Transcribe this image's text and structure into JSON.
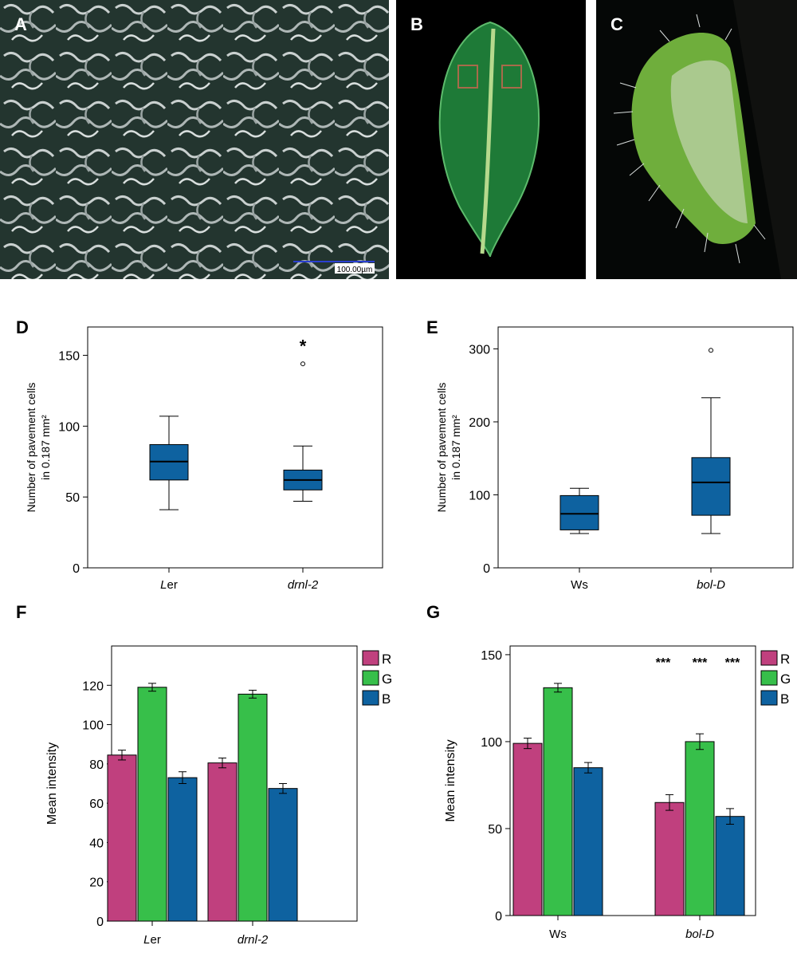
{
  "panels": {
    "A": {
      "letter": "A",
      "scale_bar_label": "100.00µm"
    },
    "B": {
      "letter": "B"
    },
    "C": {
      "letter": "C"
    },
    "D": {
      "letter": "D"
    },
    "E": {
      "letter": "E"
    },
    "F": {
      "letter": "F"
    },
    "G": {
      "letter": "G"
    }
  },
  "colors": {
    "box": "#0e62a0",
    "R": "#c0407e",
    "G": "#37bf4a",
    "B": "#0e62a0"
  },
  "chart_data": [
    {
      "id": "D",
      "type": "box",
      "ylabel_lines": [
        "Number of pavement cells",
        "in 0.187 mm²"
      ],
      "ylim": [
        0,
        170
      ],
      "yticks": [
        0,
        50,
        100,
        150
      ],
      "categories": [
        "Ler",
        "drnl-2"
      ],
      "boxes": [
        {
          "category": "Ler",
          "min": 41,
          "q1": 62,
          "median": 75,
          "q3": 87,
          "max": 107,
          "outliers": []
        },
        {
          "category": "drnl-2",
          "min": 47,
          "q1": 55,
          "median": 62,
          "q3": 69,
          "max": 86,
          "outliers": [
            144
          ]
        }
      ],
      "annotations": [
        {
          "category": "drnl-2",
          "text": "*",
          "y": 158
        }
      ]
    },
    {
      "id": "E",
      "type": "box",
      "ylabel_lines": [
        "Number of pavement cells",
        "in 0.187 mm²"
      ],
      "ylim": [
        0,
        330
      ],
      "yticks": [
        0,
        100,
        200,
        300
      ],
      "categories": [
        "Ws",
        "bol-D"
      ],
      "boxes": [
        {
          "category": "Ws",
          "min": 47,
          "q1": 52,
          "median": 74,
          "q3": 99,
          "max": 109,
          "outliers": []
        },
        {
          "category": "bol-D",
          "min": 47,
          "q1": 72,
          "median": 117,
          "q3": 151,
          "max": 233,
          "outliers": [
            298
          ]
        }
      ],
      "annotations": []
    },
    {
      "id": "F",
      "type": "bar",
      "ylabel": "Mean intensity",
      "ylim": [
        0,
        140
      ],
      "yticks": [
        0,
        20,
        40,
        60,
        80,
        100,
        120
      ],
      "categories": [
        "Ler",
        "drnl-2"
      ],
      "legend": [
        "R",
        "G",
        "B"
      ],
      "series": [
        {
          "name": "R",
          "values": [
            84.5,
            80.5
          ],
          "errors": [
            2.5,
            2.5
          ]
        },
        {
          "name": "G",
          "values": [
            119,
            115.5
          ],
          "errors": [
            2,
            2
          ]
        },
        {
          "name": "B",
          "values": [
            73,
            67.5
          ],
          "errors": [
            3,
            2.5
          ]
        }
      ],
      "annotations": []
    },
    {
      "id": "G",
      "type": "bar",
      "ylabel": "Mean intensity",
      "ylim": [
        0,
        155
      ],
      "yticks": [
        0,
        50,
        100,
        150
      ],
      "categories": [
        "Ws",
        "bol-D"
      ],
      "legend": [
        "R",
        "G",
        "B"
      ],
      "series": [
        {
          "name": "R",
          "values": [
            99,
            65
          ],
          "errors": [
            3,
            4.5
          ]
        },
        {
          "name": "G",
          "values": [
            131,
            100
          ],
          "errors": [
            2.5,
            4.5
          ]
        },
        {
          "name": "B",
          "values": [
            85,
            57
          ],
          "errors": [
            3,
            4.5
          ]
        }
      ],
      "annotations": [
        {
          "text": "***"
        },
        {
          "text": "***"
        },
        {
          "text": "***"
        }
      ]
    }
  ]
}
